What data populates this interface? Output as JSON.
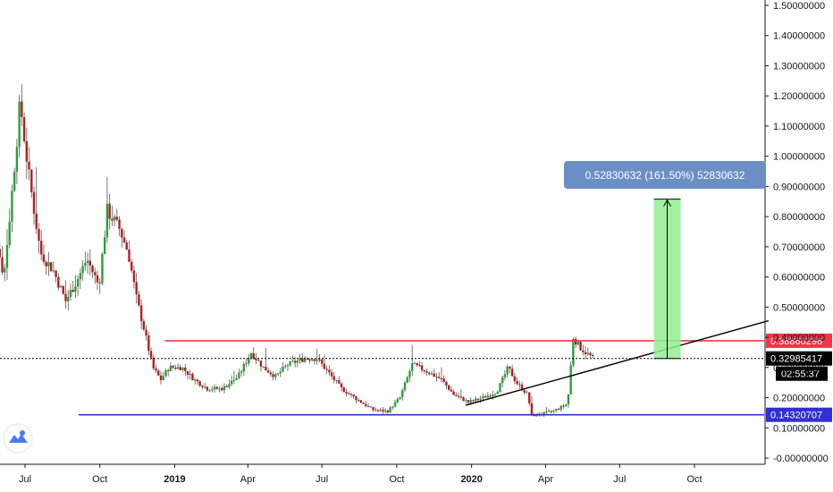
{
  "chart_data": {
    "type": "candlestick",
    "price_axis": {
      "scale": "log",
      "ylim": [
        -0.0,
        1.5
      ],
      "tick_values": [
        1.5,
        1.4,
        1.3,
        1.2,
        1.1,
        1.0,
        0.9,
        0.8,
        0.7,
        0.6,
        0.5,
        0.4,
        0.3,
        0.2,
        0.1,
        0.0
      ],
      "tick_labels": [
        "1.50000000",
        "1.40000000",
        "1.30000000",
        "1.20000000",
        "1.10000000",
        "1.00000000",
        "0.90000000",
        "0.80000000",
        "0.70000000",
        "0.60000000",
        "0.50000000",
        "0.40000000",
        "0.30000000",
        "0.20000000",
        "0.10000000",
        "-0.00000000"
      ]
    },
    "time_axis": {
      "labels": [
        "Jul",
        "Oct",
        "2019",
        "Apr",
        "Jul",
        "Oct",
        "2020",
        "Apr",
        "Jul",
        "Oct"
      ],
      "dates": [
        "2018-07-01",
        "2018-10-01",
        "2019-01-01",
        "2019-04-01",
        "2019-07-01",
        "2019-10-01",
        "2020-01-01",
        "2020-04-01",
        "2020-07-01",
        "2020-10-01"
      ],
      "range": [
        "2018-05-10",
        "2020-12-31"
      ]
    },
    "series": {
      "anchors": [
        [
          "2018-05-10",
          1.2
        ],
        [
          "2018-05-25",
          0.75
        ],
        [
          "2018-06-05",
          0.6
        ],
        [
          "2018-06-15",
          0.88
        ],
        [
          "2018-06-25",
          1.18
        ],
        [
          "2018-07-05",
          0.95
        ],
        [
          "2018-07-20",
          0.68
        ],
        [
          "2018-08-05",
          0.62
        ],
        [
          "2018-08-20",
          0.52
        ],
        [
          "2018-09-05",
          0.6
        ],
        [
          "2018-09-15",
          0.66
        ],
        [
          "2018-09-30",
          0.57
        ],
        [
          "2018-10-10",
          0.82
        ],
        [
          "2018-10-25",
          0.76
        ],
        [
          "2018-11-05",
          0.68
        ],
        [
          "2018-11-15",
          0.53
        ],
        [
          "2018-11-25",
          0.42
        ],
        [
          "2018-12-05",
          0.3
        ],
        [
          "2018-12-15",
          0.26
        ],
        [
          "2018-12-25",
          0.3
        ],
        [
          "2019-01-10",
          0.3
        ],
        [
          "2019-01-25",
          0.26
        ],
        [
          "2019-02-10",
          0.23
        ],
        [
          "2019-03-01",
          0.23
        ],
        [
          "2019-03-20",
          0.27
        ],
        [
          "2019-04-05",
          0.35
        ],
        [
          "2019-04-20",
          0.3
        ],
        [
          "2019-05-05",
          0.27
        ],
        [
          "2019-05-20",
          0.31
        ],
        [
          "2019-06-10",
          0.33
        ],
        [
          "2019-06-25",
          0.33
        ],
        [
          "2019-07-10",
          0.28
        ],
        [
          "2019-07-25",
          0.23
        ],
        [
          "2019-08-10",
          0.2
        ],
        [
          "2019-09-01",
          0.16
        ],
        [
          "2019-09-20",
          0.155
        ],
        [
          "2019-10-05",
          0.2
        ],
        [
          "2019-10-20",
          0.31
        ],
        [
          "2019-11-05",
          0.29
        ],
        [
          "2019-11-25",
          0.26
        ],
        [
          "2019-12-10",
          0.21
        ],
        [
          "2019-12-28",
          0.185
        ],
        [
          "2020-01-15",
          0.2
        ],
        [
          "2020-02-01",
          0.22
        ],
        [
          "2020-02-15",
          0.3
        ],
        [
          "2020-02-25",
          0.25
        ],
        [
          "2020-03-10",
          0.21
        ],
        [
          "2020-03-15",
          0.14
        ],
        [
          "2020-03-25",
          0.145
        ],
        [
          "2020-04-10",
          0.155
        ],
        [
          "2020-04-28",
          0.18
        ],
        [
          "2020-05-05",
          0.4
        ],
        [
          "2020-05-12",
          0.37
        ],
        [
          "2020-05-20",
          0.35
        ],
        [
          "2020-05-30",
          0.33
        ]
      ]
    },
    "horizontal_levels": [
      {
        "price": 0.38860296,
        "label": "0.38860296",
        "color": "#f23645",
        "from": "2018-12-20"
      },
      {
        "price": 0.14320707,
        "label": "0.14320707",
        "color": "#2f2fd3",
        "from": "2018-09-05"
      }
    ],
    "last_price": {
      "price": 0.32985417,
      "label": "0.32985417",
      "countdown": "02:55:37"
    },
    "trendline": {
      "from": [
        "2019-12-25",
        0.175
      ],
      "to": [
        "2020-12-31",
        0.455
      ],
      "color": "#000000"
    },
    "price_range": {
      "from": [
        "2020-08-12",
        0.3298
      ],
      "to": [
        "2020-09-14",
        0.858
      ],
      "label": "0.52830632 (161.50%) 52830632",
      "fill": "#90ee90",
      "label_color": "#6b8fc5"
    },
    "colors": {
      "up": "#26a69a",
      "down": "#ef5350",
      "up_body": "#2e9e3c",
      "down_body": "#b21f1f"
    }
  },
  "badge": {
    "icon": "tradingview-cloud-icon"
  }
}
